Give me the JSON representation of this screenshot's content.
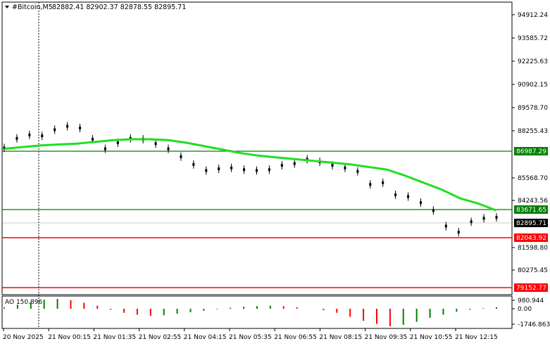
{
  "header": {
    "symbol": "#Bitcoin,M5",
    "ohlc": "82882.41 82902.37 82878.55 82895.71"
  },
  "colors": {
    "background": "#ffffff",
    "ma_line": "#22dd22",
    "green_level": "#008000",
    "red_level": "#ff0000",
    "candles": "#000000",
    "ao_up": "#008000",
    "ao_down": "#ff0000",
    "price_label_bg": "#000000"
  },
  "price_axis": {
    "ticks": [
      "94912.24",
      "93585.72",
      "92225.63",
      "90902.15",
      "89578.70",
      "88255.43",
      "86987.29",
      "85568.70",
      "84243.56",
      "83671.65",
      "82895.71",
      "82043.92",
      "81598.80",
      "80275.45",
      "79152.77"
    ]
  },
  "levels": {
    "green_upper": {
      "value": "86987.29",
      "color": "#008000"
    },
    "green_lower": {
      "value": "83671.65",
      "color": "#008000"
    },
    "current_price": {
      "value": "82895.71"
    },
    "red_upper": {
      "value": "82043.92",
      "color": "#ff0000"
    },
    "red_lower": {
      "value": "79152.77",
      "color": "#ff0000"
    }
  },
  "ao_panel": {
    "label": "AO 150.896",
    "ticks": [
      "980.944",
      "0.00",
      "-1746.863"
    ]
  },
  "time_axis": {
    "labels": [
      "20 Nov 2025",
      "21 Nov 00:15",
      "21 Nov 01:35",
      "21 Nov 02:55",
      "21 Nov 04:15",
      "21 Nov 05:35",
      "21 Nov 06:55",
      "21 Nov 08:15",
      "21 Nov 09:35",
      "21 Nov 10:55",
      "21 Nov 12:15"
    ]
  },
  "chart_data": {
    "type": "line",
    "title": "#Bitcoin,M5",
    "ylim": [
      78450,
      95300
    ],
    "price_series": [
      86900,
      87450,
      87650,
      87600,
      87950,
      88150,
      88050,
      87400,
      86850,
      87200,
      87450,
      87400,
      87150,
      86850,
      86400,
      85950,
      85600,
      85700,
      85750,
      85650,
      85600,
      85650,
      85900,
      86000,
      86250,
      86100,
      85900,
      85750,
      85550,
      84800,
      84900,
      84200,
      84100,
      83750,
      83300,
      82400,
      82050,
      82650,
      82850,
      82900
    ],
    "ma_series": [
      86850,
      86950,
      87050,
      87100,
      87150,
      87250,
      87350,
      87400,
      87400,
      87350,
      87200,
      87000,
      86800,
      86600,
      86450,
      86350,
      86250,
      86150,
      86050,
      85950,
      85800,
      85650,
      85300,
      84900,
      84500,
      84000,
      83700,
      83300
    ],
    "ao_series": [
      120,
      400,
      700,
      900,
      980,
      850,
      600,
      300,
      -100,
      -400,
      -600,
      -700,
      -650,
      -500,
      -350,
      -200,
      -50,
      100,
      200,
      260,
      300,
      250,
      150,
      0,
      -150,
      -400,
      -800,
      -1200,
      -1500,
      -1746,
      -1600,
      -1300,
      -900,
      -600,
      -300,
      -100,
      50,
      150
    ],
    "ao_ylim": [
      -1746.863,
      980.944
    ]
  }
}
